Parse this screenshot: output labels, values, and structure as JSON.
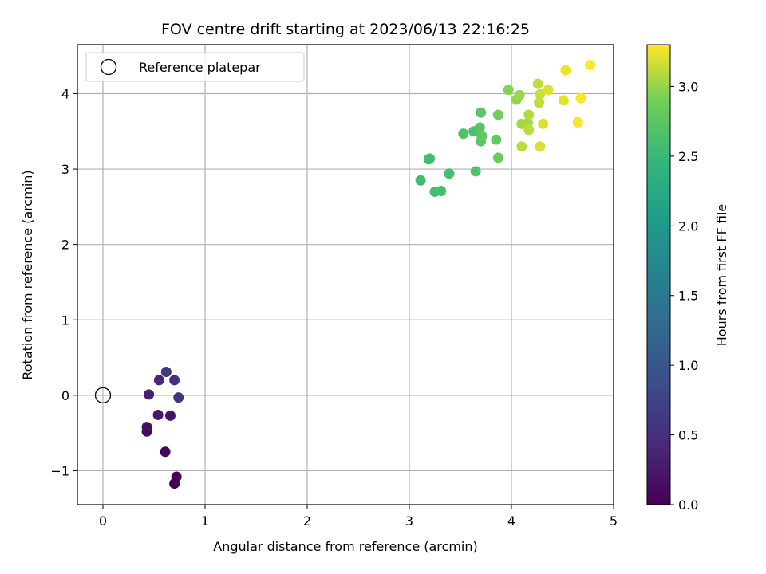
{
  "chart_data": {
    "type": "scatter",
    "title": "FOV centre drift starting at 2023/06/13 22:16:25",
    "xlabel": "Angular distance from reference (arcmin)",
    "ylabel": "Rotation from reference (arcmin)",
    "xlim": [
      -0.25,
      5.0
    ],
    "ylim": [
      -1.45,
      4.65
    ],
    "x_ticks": [
      0,
      1,
      2,
      3,
      4,
      5
    ],
    "x_tick_labels": [
      "0",
      "1",
      "2",
      "3",
      "4",
      "5"
    ],
    "y_ticks": [
      -1,
      0,
      1,
      2,
      3,
      4
    ],
    "y_tick_labels": [
      "−1",
      "0",
      "1",
      "2",
      "3",
      "4"
    ],
    "grid": true,
    "legend": {
      "position": "top-left",
      "entries": [
        "Reference platepar"
      ]
    },
    "reference_point": {
      "name": "Reference platepar",
      "x": 0,
      "y": 0
    },
    "colorbar": {
      "label": "Hours from first FF file",
      "colormap": "viridis",
      "range": [
        0.0,
        3.3
      ],
      "ticks": [
        0.0,
        0.5,
        1.0,
        1.5,
        2.0,
        2.5,
        3.0
      ],
      "tick_labels": [
        "0.0",
        "0.5",
        "1.0",
        "1.5",
        "2.0",
        "2.5",
        "3.0"
      ]
    },
    "points": [
      {
        "x": 0.7,
        "y": -1.17,
        "c": 0.0
      },
      {
        "x": 0.72,
        "y": -1.08,
        "c": 0.02
      },
      {
        "x": 0.61,
        "y": -0.75,
        "c": 0.05
      },
      {
        "x": 0.43,
        "y": -0.48,
        "c": 0.12
      },
      {
        "x": 0.43,
        "y": -0.42,
        "c": 0.15
      },
      {
        "x": 0.66,
        "y": -0.27,
        "c": 0.2
      },
      {
        "x": 0.54,
        "y": -0.26,
        "c": 0.25
      },
      {
        "x": 0.45,
        "y": 0.01,
        "c": 0.35
      },
      {
        "x": 0.74,
        "y": -0.03,
        "c": 0.55
      },
      {
        "x": 0.55,
        "y": 0.2,
        "c": 0.4
      },
      {
        "x": 0.7,
        "y": 0.2,
        "c": 0.5
      },
      {
        "x": 0.62,
        "y": 0.31,
        "c": 0.6
      },
      {
        "x": 3.11,
        "y": 2.85,
        "c": 2.58
      },
      {
        "x": 3.19,
        "y": 3.13,
        "c": 2.55
      },
      {
        "x": 3.2,
        "y": 3.14,
        "c": 2.57
      },
      {
        "x": 3.25,
        "y": 2.7,
        "c": 2.58
      },
      {
        "x": 3.31,
        "y": 2.71,
        "c": 2.6
      },
      {
        "x": 3.39,
        "y": 2.94,
        "c": 2.62
      },
      {
        "x": 3.53,
        "y": 3.47,
        "c": 2.65
      },
      {
        "x": 3.63,
        "y": 3.5,
        "c": 2.65
      },
      {
        "x": 3.65,
        "y": 2.97,
        "c": 2.68
      },
      {
        "x": 3.69,
        "y": 3.55,
        "c": 2.72
      },
      {
        "x": 3.7,
        "y": 3.75,
        "c": 2.75
      },
      {
        "x": 3.7,
        "y": 3.37,
        "c": 2.75
      },
      {
        "x": 3.71,
        "y": 3.44,
        "c": 2.78
      },
      {
        "x": 3.85,
        "y": 3.39,
        "c": 2.8
      },
      {
        "x": 3.87,
        "y": 3.15,
        "c": 2.85
      },
      {
        "x": 3.87,
        "y": 3.72,
        "c": 2.88
      },
      {
        "x": 3.97,
        "y": 4.05,
        "c": 2.95
      },
      {
        "x": 4.05,
        "y": 3.92,
        "c": 3.0
      },
      {
        "x": 4.08,
        "y": 3.98,
        "c": 3.02
      },
      {
        "x": 4.1,
        "y": 3.6,
        "c": 3.05
      },
      {
        "x": 4.1,
        "y": 3.3,
        "c": 3.1
      },
      {
        "x": 4.16,
        "y": 3.61,
        "c": 3.05
      },
      {
        "x": 4.17,
        "y": 3.72,
        "c": 3.08
      },
      {
        "x": 4.17,
        "y": 3.52,
        "c": 3.1
      },
      {
        "x": 4.26,
        "y": 4.13,
        "c": 3.12
      },
      {
        "x": 4.27,
        "y": 3.88,
        "c": 3.12
      },
      {
        "x": 4.28,
        "y": 3.99,
        "c": 3.15
      },
      {
        "x": 4.28,
        "y": 3.3,
        "c": 3.18
      },
      {
        "x": 4.31,
        "y": 3.6,
        "c": 3.2
      },
      {
        "x": 4.36,
        "y": 4.05,
        "c": 3.2
      },
      {
        "x": 4.51,
        "y": 3.91,
        "c": 3.22
      },
      {
        "x": 4.53,
        "y": 4.31,
        "c": 3.25
      },
      {
        "x": 4.65,
        "y": 3.62,
        "c": 3.28
      },
      {
        "x": 4.68,
        "y": 3.94,
        "c": 3.28
      },
      {
        "x": 4.77,
        "y": 4.38,
        "c": 3.3
      }
    ]
  }
}
